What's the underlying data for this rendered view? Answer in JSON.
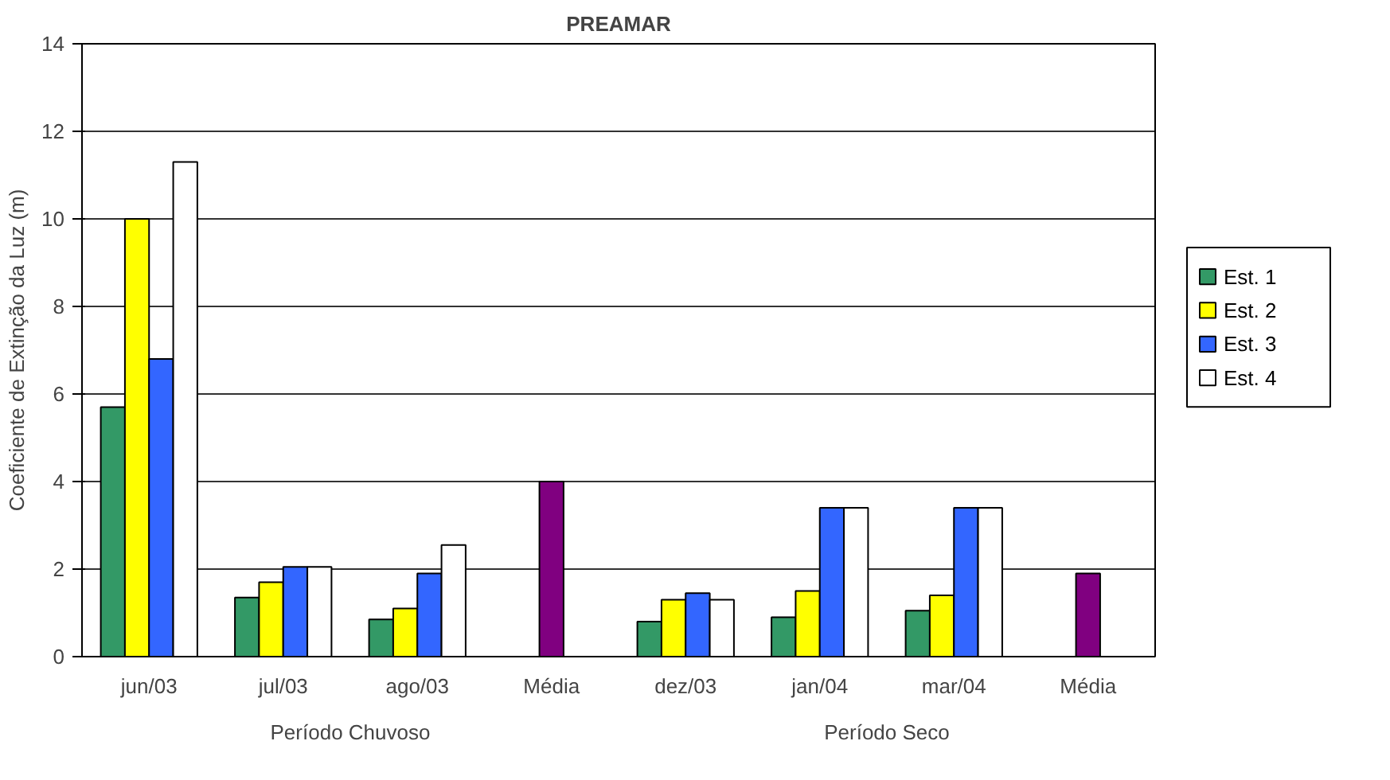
{
  "chart_data": {
    "type": "bar",
    "title": "PREAMAR",
    "ylabel": "Coeficiente de Extinção da Luz (m)",
    "categories": [
      "jun/03",
      "jul/03",
      "ago/03",
      "Média",
      "dez/03",
      "jan/04",
      "mar/04",
      "Média"
    ],
    "series": [
      {
        "name": "Est. 1",
        "color": "#339966",
        "values": [
          5.7,
          1.35,
          0.85,
          null,
          0.8,
          0.9,
          1.05,
          null
        ]
      },
      {
        "name": "Est. 2",
        "color": "#ffff00",
        "values": [
          10.0,
          1.7,
          1.1,
          null,
          1.3,
          1.5,
          1.4,
          null
        ]
      },
      {
        "name": "Est. 3",
        "color": "#3366ff",
        "values": [
          6.8,
          2.05,
          1.9,
          null,
          1.45,
          3.4,
          3.4,
          null
        ]
      },
      {
        "name": "Est. 4",
        "color": "#ffffff",
        "values": [
          11.3,
          2.05,
          2.55,
          null,
          1.3,
          3.4,
          3.4,
          null
        ]
      },
      {
        "color": "#800080",
        "values": [
          null,
          null,
          null,
          4.0,
          null,
          null,
          null,
          1.9
        ]
      }
    ],
    "annotations": [
      "Período Chuvoso",
      "Período Seco"
    ],
    "ylim": [
      0,
      14
    ],
    "yticks": [
      0,
      2,
      4,
      6,
      8,
      10,
      12,
      14
    ],
    "grid": "y",
    "legend": "right"
  }
}
